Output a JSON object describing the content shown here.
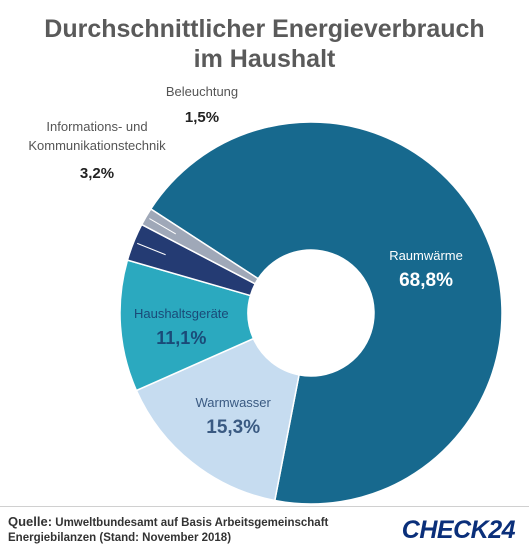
{
  "title_line1": "Durchschnittlicher Energieverbrauch",
  "title_line2": "im Haushalt",
  "chart_data": {
    "type": "pie",
    "title": "Durchschnittlicher Energieverbrauch im Haushalt",
    "donut": true,
    "slices": [
      {
        "label": "Raumwärme",
        "value": 68.8,
        "value_label": "68,8%",
        "color": "#17698e"
      },
      {
        "label": "Warmwasser",
        "value": 15.3,
        "value_label": "15,3%",
        "color": "#c6dcf0"
      },
      {
        "label": "Haushaltsgeräte",
        "value": 11.1,
        "value_label": "11,1%",
        "color": "#2ba9bf"
      },
      {
        "label": "Informations- und Kommunikationstechnik",
        "label_lines": [
          "Informations- und",
          "Kommunikationstechnik"
        ],
        "value": 3.2,
        "value_label": "3,2%",
        "color": "#243b73"
      },
      {
        "label": "Beleuchtung",
        "value": 1.5,
        "value_label": "1,5%",
        "color": "#9fa8b8"
      }
    ]
  },
  "source": {
    "label": "Quelle:",
    "line1": "Umweltbundesamt auf Basis Arbeitsgemeinschaft",
    "line2": "Energiebilanzen (Stand: November 2018)"
  },
  "logo_text": "CHECK24"
}
